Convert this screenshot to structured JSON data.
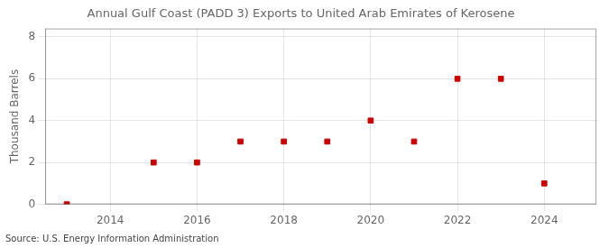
{
  "chart_data": {
    "type": "scatter",
    "title": "Annual Gulf Coast (PADD 3) Exports to United Arab Emirates of Kerosene",
    "ylabel": "Thousand Barrels",
    "source": "Source: U.S. Energy Information Administration",
    "x": [
      2013,
      2015,
      2016,
      2017,
      2018,
      2019,
      2020,
      2021,
      2022,
      2023,
      2024
    ],
    "values": [
      0,
      2,
      2,
      3,
      3,
      3,
      4,
      3,
      6,
      6,
      1
    ],
    "color": "#cc0000",
    "marker": "square",
    "xlim": [
      2012.5,
      2025.2
    ],
    "xticks": [
      2014,
      2016,
      2018,
      2020,
      2022,
      2024
    ],
    "ylim": [
      0,
      8.4
    ],
    "yticks": [
      0,
      2,
      4,
      6,
      8
    ],
    "grid": true
  }
}
